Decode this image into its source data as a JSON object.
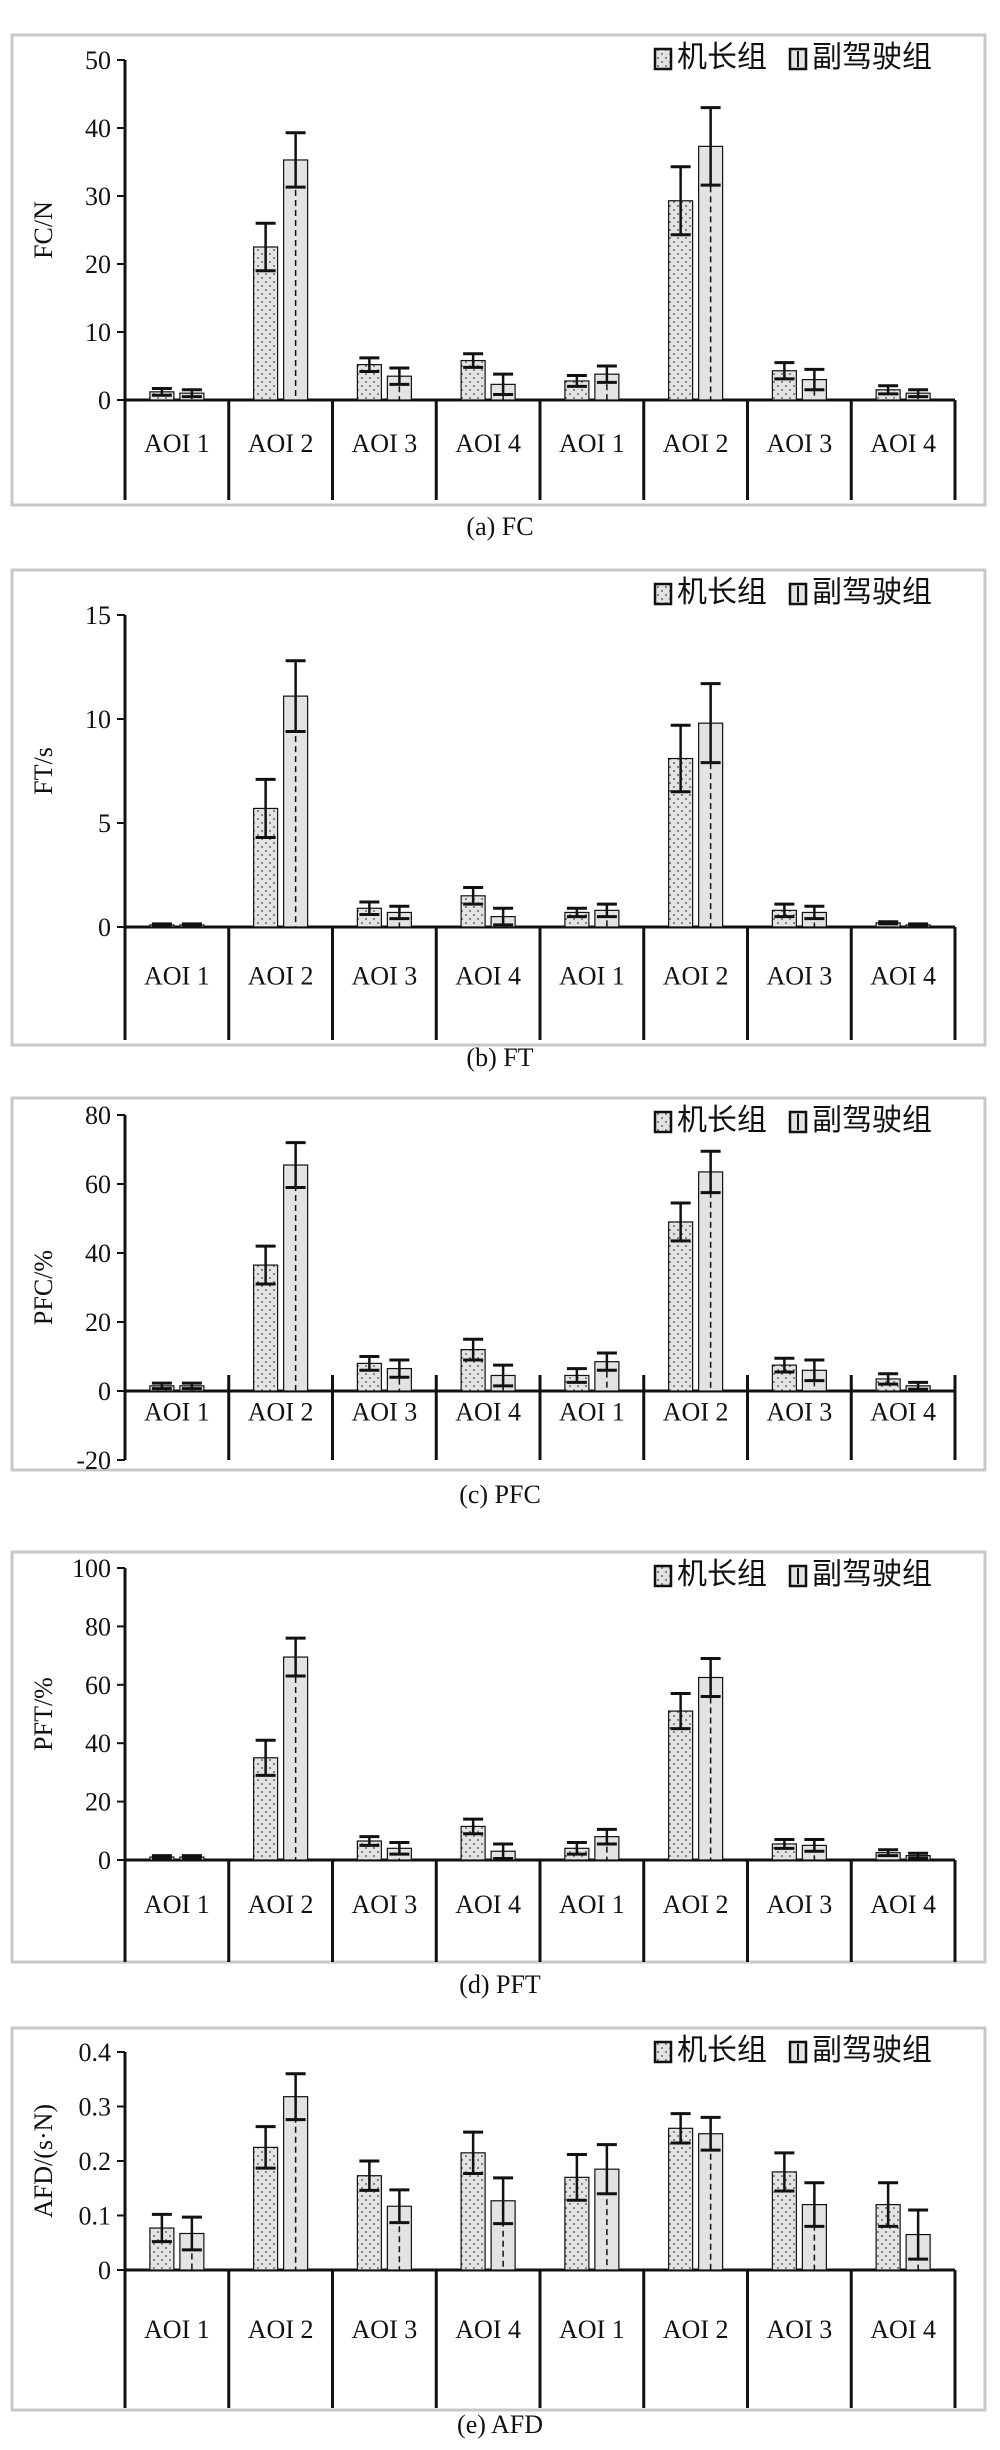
{
  "figure": {
    "categories": [
      "AOI 1",
      "AOI 2",
      "AOI 3",
      "AOI 4",
      "AOI 1",
      "AOI 2",
      "AOI 3",
      "AOI 4"
    ],
    "legend": [
      "机长组",
      "副驾驶组"
    ],
    "colors": {
      "frame": "#c8c8c8",
      "bar_fill": "#e3e3e3",
      "ink": "#111111"
    }
  },
  "chart_data": [
    {
      "type": "bar",
      "caption": "(a) FC",
      "ylabel": "FC/N",
      "ylim": [
        0,
        50
      ],
      "yticks": [
        0,
        10,
        20,
        30,
        40,
        50
      ],
      "categories": [
        "AOI 1",
        "AOI 2",
        "AOI 3",
        "AOI 4",
        "AOI 1",
        "AOI 2",
        "AOI 3",
        "AOI 4"
      ],
      "series": [
        {
          "name": "机长组",
          "values": [
            1.2,
            22.5,
            5.2,
            5.8,
            2.8,
            29.3,
            4.3,
            1.5
          ],
          "errors": [
            0.5,
            3.5,
            1.0,
            1.0,
            0.8,
            5.0,
            1.2,
            0.6
          ]
        },
        {
          "name": "副驾驶组",
          "values": [
            1.0,
            35.3,
            3.5,
            2.3,
            3.8,
            37.3,
            3.0,
            1.0
          ],
          "errors": [
            0.5,
            4.0,
            1.2,
            1.5,
            1.2,
            5.7,
            1.5,
            0.5
          ]
        }
      ]
    },
    {
      "type": "bar",
      "caption": "(b) FT",
      "ylabel": "FT/s",
      "ylim": [
        0,
        15
      ],
      "yticks": [
        0,
        5,
        10,
        15
      ],
      "categories": [
        "AOI 1",
        "AOI 2",
        "AOI 3",
        "AOI 4",
        "AOI 1",
        "AOI 2",
        "AOI 3",
        "AOI 4"
      ],
      "series": [
        {
          "name": "机长组",
          "values": [
            0.1,
            5.7,
            0.9,
            1.5,
            0.7,
            8.1,
            0.8,
            0.2
          ],
          "errors": [
            0.05,
            1.4,
            0.3,
            0.4,
            0.2,
            1.6,
            0.3,
            0.05
          ]
        },
        {
          "name": "副驾驶组",
          "values": [
            0.1,
            11.1,
            0.7,
            0.5,
            0.8,
            9.8,
            0.7,
            0.1
          ],
          "errors": [
            0.05,
            1.7,
            0.3,
            0.4,
            0.3,
            1.9,
            0.3,
            0.05
          ]
        }
      ]
    },
    {
      "type": "bar",
      "caption": "(c) PFC",
      "ylabel": "PFC/%",
      "ylim": [
        -20,
        80
      ],
      "yticks": [
        -20,
        0,
        20,
        40,
        60,
        80
      ],
      "categories": [
        "AOI 1",
        "AOI 2",
        "AOI 3",
        "AOI 4",
        "AOI 1",
        "AOI 2",
        "AOI 3",
        "AOI 4"
      ],
      "series": [
        {
          "name": "机长组",
          "values": [
            1.5,
            36.5,
            8.0,
            12.0,
            4.5,
            49.0,
            7.5,
            3.5
          ],
          "errors": [
            0.8,
            5.5,
            2.0,
            3.0,
            2.0,
            5.5,
            2.0,
            1.5
          ]
        },
        {
          "name": "副驾驶组",
          "values": [
            1.5,
            65.5,
            6.5,
            4.5,
            8.5,
            63.5,
            6.0,
            1.5
          ],
          "errors": [
            0.8,
            6.5,
            2.5,
            3.0,
            2.5,
            6.0,
            3.0,
            1.0
          ]
        }
      ]
    },
    {
      "type": "bar",
      "caption": "(d) PFT",
      "ylabel": "PFT/%",
      "ylim": [
        0,
        100
      ],
      "yticks": [
        0,
        20,
        40,
        60,
        80,
        100
      ],
      "categories": [
        "AOI 1",
        "AOI 2",
        "AOI 3",
        "AOI 4",
        "AOI 1",
        "AOI 2",
        "AOI 3",
        "AOI 4"
      ],
      "series": [
        {
          "name": "机长组",
          "values": [
            1.0,
            35.0,
            6.5,
            11.5,
            4.0,
            51.0,
            5.5,
            2.5
          ],
          "errors": [
            0.5,
            6.0,
            1.5,
            2.5,
            2.0,
            6.0,
            1.5,
            1.0
          ]
        },
        {
          "name": "副驾驶组",
          "values": [
            1.0,
            69.5,
            4.0,
            3.0,
            8.0,
            62.5,
            5.0,
            1.5
          ],
          "errors": [
            0.5,
            6.5,
            2.0,
            2.5,
            2.5,
            6.5,
            2.0,
            0.8
          ]
        }
      ]
    },
    {
      "type": "bar",
      "caption": "(e) AFD",
      "ylabel": "AFD/(s·N)",
      "ylim": [
        0,
        0.4
      ],
      "yticks": [
        0,
        0.1,
        0.2,
        0.3,
        0.4
      ],
      "categories": [
        "AOI 1",
        "AOI 2",
        "AOI 3",
        "AOI 4",
        "AOI 1",
        "AOI 2",
        "AOI 3",
        "AOI 4"
      ],
      "series": [
        {
          "name": "机长组",
          "values": [
            0.077,
            0.225,
            0.173,
            0.215,
            0.17,
            0.26,
            0.18,
            0.12
          ],
          "errors": [
            0.025,
            0.038,
            0.027,
            0.038,
            0.042,
            0.027,
            0.035,
            0.04
          ]
        },
        {
          "name": "副驾驶组",
          "values": [
            0.067,
            0.318,
            0.117,
            0.127,
            0.185,
            0.25,
            0.12,
            0.065
          ],
          "errors": [
            0.03,
            0.042,
            0.03,
            0.042,
            0.045,
            0.03,
            0.04,
            0.045
          ]
        }
      ]
    }
  ]
}
